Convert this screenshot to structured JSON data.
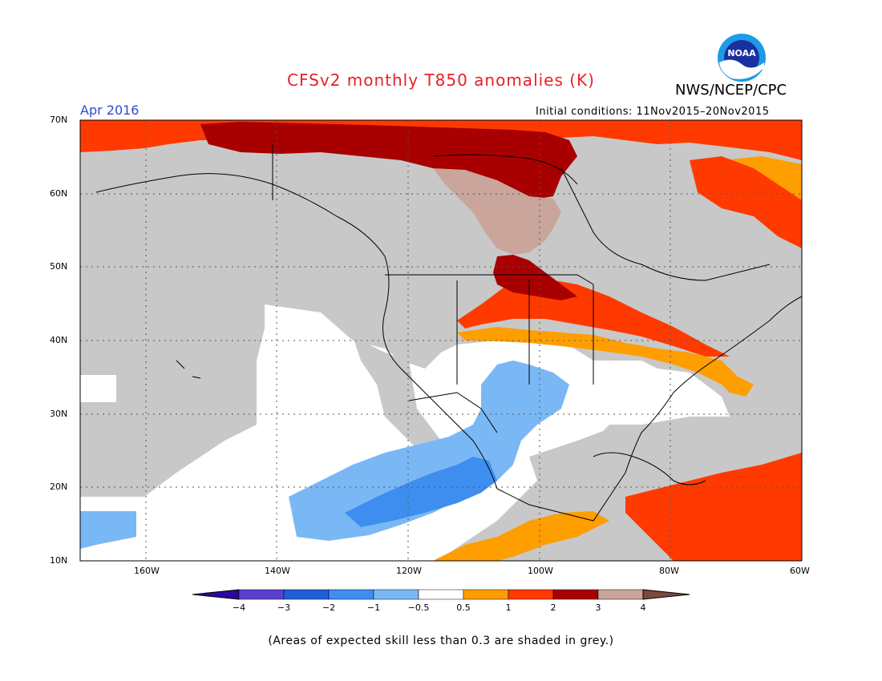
{
  "title": "CFSv2 monthly T850 anomalies (K)",
  "agency": "NWS/NCEP/CPC",
  "logo_text": "NOAA",
  "month": "Apr 2016",
  "initial_conditions": "Initial conditions: 11Nov2015–20Nov2015",
  "lat_labels": [
    "70N",
    "60N",
    "50N",
    "40N",
    "30N",
    "20N",
    "10N"
  ],
  "lon_labels": [
    "160W",
    "140W",
    "120W",
    "100W",
    "80W",
    "60W"
  ],
  "colorbar": {
    "labels": [
      "−4",
      "−3",
      "−2",
      "−1",
      "−0.5",
      "0.5",
      "1",
      "2",
      "3",
      "4"
    ],
    "colors": [
      "#2a0a9e",
      "#5a3fd0",
      "#1f5fd6",
      "#3e8ef0",
      "#7ab8f5",
      "#ffffff",
      "#ff9e00",
      "#ff3a00",
      "#a80000",
      "#c9a59b",
      "#7a4a3a"
    ]
  },
  "note": "(Areas of expected skill less than 0.3 are shaded in grey.)",
  "colors": {
    "grey": "#c8c8c8",
    "title": "#e8202a",
    "month": "#2d4ad6"
  }
}
